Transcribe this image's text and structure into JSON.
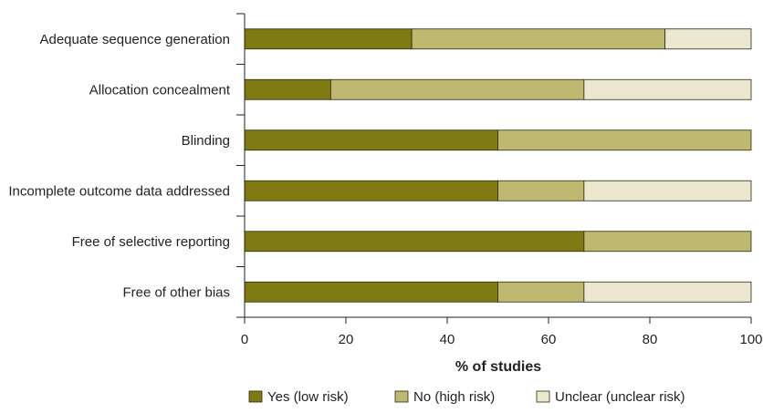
{
  "chart_data": {
    "type": "bar",
    "orientation": "horizontal",
    "stacked": true,
    "categories": [
      "Adequate sequence generation",
      "Allocation concealment",
      "Blinding",
      "Incomplete outcome data addressed",
      "Free of selective reporting",
      "Free of other bias"
    ],
    "series": [
      {
        "name": "Yes (low risk)",
        "color": "#7f7a12",
        "values": [
          33,
          17,
          50,
          50,
          67,
          50
        ]
      },
      {
        "name": "No (high risk)",
        "color": "#bfb871",
        "values": [
          50,
          50,
          50,
          17,
          33,
          17
        ]
      },
      {
        "name": "Unclear (unclear risk)",
        "color": "#ebe8cf",
        "values": [
          17,
          33,
          0,
          33,
          0,
          33
        ]
      }
    ],
    "xlabel": "% of studies",
    "xlim": [
      0,
      100
    ],
    "xticks": [
      0,
      20,
      40,
      60,
      80,
      100
    ],
    "grid": false,
    "legend_position": "bottom"
  }
}
